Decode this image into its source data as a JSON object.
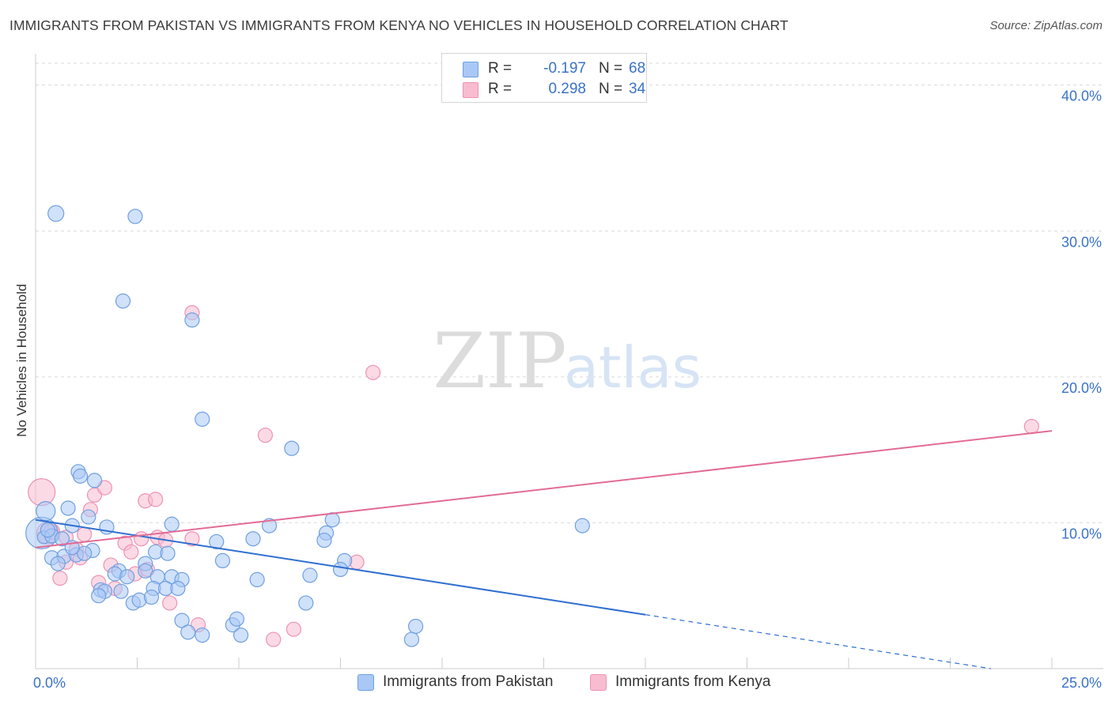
{
  "title": "IMMIGRANTS FROM PAKISTAN VS IMMIGRANTS FROM KENYA NO VEHICLES IN HOUSEHOLD CORRELATION CHART",
  "source": "Source: ZipAtlas.com",
  "watermark": {
    "zip": "ZIP",
    "atlas": "atlas"
  },
  "legend_top": {
    "rows": [
      {
        "r_label": "R =",
        "r_value": "-0.197",
        "n_label": "N =",
        "n_value": "68"
      },
      {
        "r_label": "R =",
        "r_value": "0.298",
        "n_label": "N =",
        "n_value": "34"
      }
    ]
  },
  "legend_bottom": {
    "items": [
      {
        "label": "Immigrants from Pakistan"
      },
      {
        "label": "Immigrants from Kenya"
      }
    ]
  },
  "colors": {
    "pakistan_fill": "#a9c8f5",
    "pakistan_stroke": "#6fa0e0",
    "pakistan_line": "#2f6fd0",
    "kenya_fill": "#f8bcd0",
    "kenya_stroke": "#ee92b3",
    "kenya_line": "#e26b96",
    "tick_label": "#3a72c8",
    "grid": "#d9d9d9"
  },
  "chart_data": {
    "type": "scatter",
    "title": "IMMIGRANTS FROM PAKISTAN VS IMMIGRANTS FROM KENYA NO VEHICLES IN HOUSEHOLD CORRELATION CHART",
    "xlabel": "",
    "ylabel": "No Vehicles in Household",
    "xlim": [
      0,
      25
    ],
    "ylim": [
      0,
      41.5
    ],
    "x_tick_labels": [
      {
        "value": 0,
        "label": "0.0%"
      },
      {
        "value": 25,
        "label": "25.0%"
      }
    ],
    "y_tick_labels": [
      {
        "value": 10,
        "label": "10.0%"
      },
      {
        "value": 20,
        "label": "20.0%"
      },
      {
        "value": 30,
        "label": "30.0%"
      },
      {
        "value": 40,
        "label": "40.0%"
      }
    ],
    "x_minor_ticks": [
      2.5,
      5,
      7.5,
      10,
      12.5,
      15,
      17.5,
      20,
      22.5,
      25
    ],
    "grid": true,
    "series": [
      {
        "name": "Immigrants from Pakistan",
        "r": -0.197,
        "n": 68,
        "trend": {
          "x0": 0,
          "y0": 10.2,
          "x1": 15,
          "y1": 3.7,
          "dashed_to_x": 23.5,
          "dashed_to_y": 0.0
        },
        "points": [
          [
            0.15,
            9.3,
            20
          ],
          [
            0.25,
            10.8,
            12
          ],
          [
            0.2,
            9.0,
            8
          ],
          [
            0.5,
            31.2,
            10
          ],
          [
            2.45,
            31.0,
            9
          ],
          [
            2.15,
            25.2,
            9
          ],
          [
            3.85,
            23.9,
            9
          ],
          [
            4.1,
            17.1,
            9
          ],
          [
            6.3,
            15.1,
            9
          ],
          [
            1.05,
            13.5,
            9
          ],
          [
            1.1,
            13.2,
            9
          ],
          [
            1.45,
            12.9,
            9
          ],
          [
            0.8,
            11.0,
            9
          ],
          [
            1.3,
            10.4,
            9
          ],
          [
            0.9,
            9.8,
            9
          ],
          [
            1.75,
            9.7,
            9
          ],
          [
            3.35,
            9.9,
            9
          ],
          [
            5.75,
            9.8,
            9
          ],
          [
            7.3,
            10.2,
            9
          ],
          [
            13.45,
            9.8,
            9
          ],
          [
            0.4,
            9.1,
            9
          ],
          [
            0.65,
            8.9,
            9
          ],
          [
            1.4,
            8.1,
            9
          ],
          [
            2.95,
            8.0,
            9
          ],
          [
            3.25,
            7.9,
            9
          ],
          [
            0.4,
            7.6,
            9
          ],
          [
            0.7,
            7.7,
            9
          ],
          [
            0.55,
            7.2,
            9
          ],
          [
            1.0,
            7.8,
            9
          ],
          [
            4.45,
            8.7,
            9
          ],
          [
            5.35,
            8.9,
            9
          ],
          [
            7.15,
            9.3,
            9
          ],
          [
            7.1,
            8.8,
            9
          ],
          [
            4.6,
            7.4,
            9
          ],
          [
            7.6,
            7.4,
            9
          ],
          [
            7.5,
            6.8,
            9
          ],
          [
            2.7,
            7.2,
            9
          ],
          [
            2.7,
            6.7,
            9
          ],
          [
            2.05,
            6.7,
            9
          ],
          [
            1.95,
            6.5,
            9
          ],
          [
            2.25,
            6.3,
            9
          ],
          [
            3.0,
            6.3,
            9
          ],
          [
            3.35,
            6.3,
            9
          ],
          [
            3.6,
            6.1,
            9
          ],
          [
            5.45,
            6.1,
            9
          ],
          [
            6.75,
            6.4,
            9
          ],
          [
            2.9,
            5.5,
            9
          ],
          [
            3.2,
            5.5,
            9
          ],
          [
            3.5,
            5.5,
            9
          ],
          [
            1.6,
            5.4,
            9
          ],
          [
            1.7,
            5.3,
            9
          ],
          [
            2.1,
            5.3,
            9
          ],
          [
            1.55,
            5.0,
            9
          ],
          [
            2.4,
            4.5,
            9
          ],
          [
            2.55,
            4.7,
            9
          ],
          [
            2.85,
            4.9,
            9
          ],
          [
            6.65,
            4.5,
            9
          ],
          [
            3.6,
            3.3,
            9
          ],
          [
            4.85,
            3.0,
            9
          ],
          [
            4.95,
            3.4,
            9
          ],
          [
            3.75,
            2.5,
            9
          ],
          [
            4.1,
            2.3,
            9
          ],
          [
            5.05,
            2.3,
            9
          ],
          [
            9.35,
            2.9,
            9
          ],
          [
            9.25,
            2.0,
            9
          ],
          [
            0.3,
            9.5,
            9
          ],
          [
            1.2,
            7.9,
            9
          ],
          [
            0.9,
            8.3,
            9
          ]
        ]
      },
      {
        "name": "Immigrants from Kenya",
        "r": 0.298,
        "n": 34,
        "trend": {
          "x0": 0,
          "y0": 8.3,
          "x1": 25,
          "y1": 16.3
        },
        "points": [
          [
            0.15,
            12.1,
            17
          ],
          [
            0.3,
            9.3,
            14
          ],
          [
            0.4,
            9.4,
            10
          ],
          [
            0.75,
            9.0,
            9
          ],
          [
            0.75,
            7.3,
            9
          ],
          [
            0.6,
            6.2,
            9
          ],
          [
            1.0,
            8.2,
            9
          ],
          [
            1.1,
            7.6,
            9
          ],
          [
            1.2,
            9.2,
            9
          ],
          [
            1.35,
            10.9,
            9
          ],
          [
            1.45,
            11.9,
            9
          ],
          [
            1.7,
            12.4,
            9
          ],
          [
            1.55,
            5.9,
            9
          ],
          [
            1.85,
            7.1,
            9
          ],
          [
            1.95,
            5.5,
            9
          ],
          [
            2.2,
            8.6,
            9
          ],
          [
            2.35,
            8.0,
            9
          ],
          [
            2.45,
            6.5,
            9
          ],
          [
            2.6,
            8.9,
            9
          ],
          [
            2.75,
            6.8,
            9
          ],
          [
            2.7,
            11.5,
            9
          ],
          [
            2.95,
            11.6,
            9
          ],
          [
            3.0,
            9.0,
            9
          ],
          [
            3.2,
            8.8,
            9
          ],
          [
            3.3,
            4.5,
            9
          ],
          [
            3.85,
            24.4,
            9
          ],
          [
            3.85,
            8.9,
            9
          ],
          [
            4.0,
            3.0,
            9
          ],
          [
            5.65,
            16.0,
            9
          ],
          [
            5.85,
            2.0,
            9
          ],
          [
            6.35,
            2.7,
            9
          ],
          [
            7.9,
            7.3,
            9
          ],
          [
            8.3,
            20.3,
            9
          ],
          [
            24.5,
            16.6,
            9
          ]
        ]
      }
    ]
  }
}
